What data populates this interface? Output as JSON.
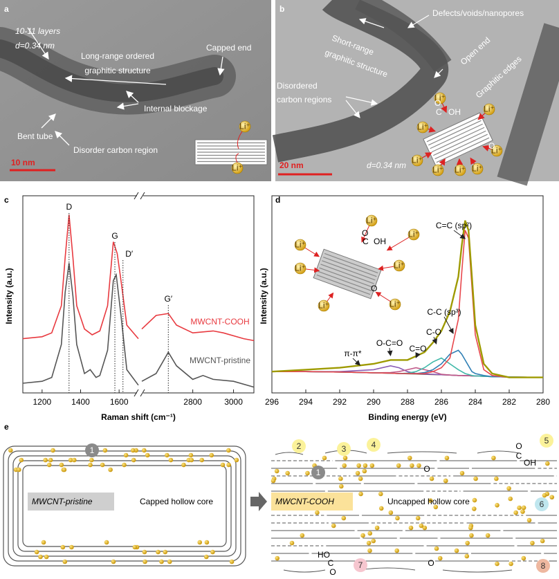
{
  "panels": {
    "a": {
      "label": "a",
      "annotations": [
        "10-11 layers",
        "d=0.34 nm",
        "Long-range ordered",
        "graphitic structure",
        "Capped end",
        "Internal blockage",
        "Bent tube",
        "Disorder carbon region"
      ],
      "scale_bar": "10 nm",
      "ions": [
        "Li⁺",
        "Li⁺"
      ]
    },
    "b": {
      "label": "b",
      "annotations": [
        "Defects/voids/nanopores",
        "Short-range",
        "graphitic structure",
        "Open end",
        "Graphitic edges",
        "Disordered",
        "carbon regions",
        "d=0.34 nm"
      ],
      "scale_bar": "20 nm",
      "ions": [
        "Li⁺",
        "Li⁺",
        "Li⁺",
        "Li⁺",
        "Li⁺",
        "Li⁺",
        "Li⁺",
        "Li⁺"
      ],
      "groups": [
        "O",
        "C",
        "OH",
        "O"
      ]
    },
    "c": {
      "label": "c"
    },
    "d": {
      "label": "d",
      "inset": {
        "ions": [
          "Li⁺",
          "Li⁺",
          "Li⁺",
          "Li⁺",
          "Li⁺",
          "Li⁺",
          "Li⁺"
        ],
        "groups": [
          "O",
          "C",
          "OH",
          "O"
        ]
      }
    },
    "e": {
      "label": "e",
      "left": {
        "name": "MWCNT-pristine",
        "core": "Capped hollow core",
        "sites": [
          "1"
        ]
      },
      "right": {
        "name": "MWCNT-COOH",
        "core": "Uncapped hollow core",
        "sites": [
          "1",
          "2",
          "3",
          "4",
          "5",
          "6",
          "7",
          "8"
        ],
        "groups": [
          "O",
          "O",
          "C",
          "OH",
          "HO",
          "C",
          "O",
          "O"
        ]
      }
    }
  },
  "chart_data": [
    {
      "type": "line",
      "xlabel": "Raman shift (cm⁻¹)",
      "ylabel": "Intensity (a.u.)",
      "segments": [
        {
          "xlim": [
            1100,
            1700
          ],
          "xticks": [
            1200,
            1400,
            1600
          ]
        },
        {
          "xlim": [
            2550,
            3100
          ],
          "xticks": [
            2800,
            3000
          ]
        }
      ],
      "ylim": [
        0,
        100
      ],
      "series": [
        {
          "name": "MWCNT-COOH",
          "color": "#e8393f",
          "x": [
            1100,
            1200,
            1250,
            1300,
            1320,
            1340,
            1360,
            1380,
            1420,
            1460,
            1500,
            1540,
            1570,
            1590,
            1610,
            1640,
            1700,
            2550,
            2620,
            2680,
            2720,
            2800,
            2900,
            2950,
            3050,
            3100
          ],
          "values": [
            28,
            29,
            31,
            45,
            70,
            92,
            70,
            45,
            33,
            30,
            32,
            45,
            78,
            72,
            58,
            35,
            28,
            33,
            40,
            41,
            35,
            31,
            32,
            31,
            28,
            27
          ]
        },
        {
          "name": "MWCNT-pristine",
          "color": "#555555",
          "x": [
            1100,
            1200,
            1250,
            1300,
            1320,
            1340,
            1360,
            1380,
            1420,
            1450,
            1480,
            1500,
            1540,
            1570,
            1585,
            1610,
            1640,
            1700,
            2550,
            2620,
            2680,
            2720,
            2800,
            2850,
            2900,
            3000,
            3100
          ],
          "values": [
            5,
            6,
            8,
            25,
            52,
            67,
            50,
            25,
            10,
            12,
            8,
            9,
            22,
            58,
            61,
            40,
            12,
            4,
            6,
            10,
            21,
            14,
            7,
            9,
            7,
            6,
            3
          ]
        }
      ],
      "peaks": [
        {
          "label": "D",
          "x": 1340
        },
        {
          "label": "G",
          "x": 1578
        },
        {
          "label": "D′",
          "x": 1620
        },
        {
          "label": "G′",
          "x": 2680
        }
      ]
    },
    {
      "type": "line",
      "xlabel": "Binding energy (eV)",
      "ylabel": "Intensity (a.u.)",
      "xlim": [
        296,
        280
      ],
      "xticks": [
        296,
        294,
        292,
        290,
        288,
        286,
        284,
        282,
        280
      ],
      "ylim": [
        0,
        100
      ],
      "x": [
        296,
        294,
        292,
        291,
        290,
        289,
        288.5,
        288,
        287.5,
        287,
        286.5,
        286,
        285.5,
        285,
        284.8,
        284.6,
        284.4,
        284.2,
        284,
        283.5,
        283,
        282,
        280
      ],
      "series": [
        {
          "color": "#7b5b3a",
          "values": [
            11,
            11,
            10.8,
            10.6,
            10.4,
            10.2,
            10,
            9.9,
            9.8,
            9.6,
            9.5,
            9.4,
            9.2,
            9,
            9,
            8.9,
            8.9,
            8.8,
            8.8,
            8.6,
            8.4,
            8.2,
            8
          ]
        },
        {
          "color": "#8a5cb5",
          "values": [
            11,
            11,
            11,
            11.5,
            12,
            14,
            13,
            11,
            10,
            9.8,
            9.6,
            9.4,
            9.2,
            9,
            9,
            8.9,
            8.9,
            8.8,
            8.8,
            8.6,
            8.4,
            8.2,
            8
          ]
        },
        {
          "color": "#c05a8a",
          "values": [
            11,
            11,
            10.8,
            10.6,
            10.4,
            10.5,
            11,
            12,
            13,
            12,
            11,
            9.6,
            9.2,
            9,
            9,
            8.9,
            8.9,
            8.8,
            8.8,
            8.6,
            8.4,
            8.2,
            8
          ]
        },
        {
          "color": "#3fb8a8",
          "values": [
            11,
            11,
            10.8,
            10.6,
            10.4,
            10.2,
            10,
            10.2,
            11,
            13,
            16,
            18,
            15,
            12,
            11,
            10,
            9.5,
            9,
            8.8,
            8.6,
            8.4,
            8.2,
            8
          ]
        },
        {
          "color": "#2f7fb5",
          "values": [
            11,
            11,
            10.8,
            10.6,
            10.4,
            10.2,
            10,
            10,
            10,
            10.5,
            12,
            15,
            20,
            22,
            20,
            17,
            14,
            11,
            10,
            9,
            8.4,
            8.2,
            8
          ]
        },
        {
          "color": "#e8474c",
          "values": [
            11,
            11,
            10.8,
            10.6,
            10.4,
            10.2,
            10,
            10,
            10,
            10,
            11,
            13,
            18,
            38,
            62,
            84,
            80,
            55,
            30,
            12,
            9,
            8,
            8
          ]
        },
        {
          "color": "#9e9a00",
          "values": [
            11,
            12,
            13,
            14,
            15,
            17,
            17,
            17,
            19,
            21,
            26,
            32,
            42,
            60,
            76,
            89,
            84,
            60,
            35,
            15,
            10,
            8,
            8
          ]
        }
      ],
      "annotations": [
        {
          "label": "C=C (sp²)",
          "x": 284.6
        },
        {
          "label": "C-C (sp³)",
          "x": 285.3
        },
        {
          "label": "C-O",
          "x": 286.3
        },
        {
          "label": "C=O",
          "x": 287.5
        },
        {
          "label": "O-C=O",
          "x": 289
        },
        {
          "label": "π-π*",
          "x": 290.8
        }
      ]
    }
  ]
}
